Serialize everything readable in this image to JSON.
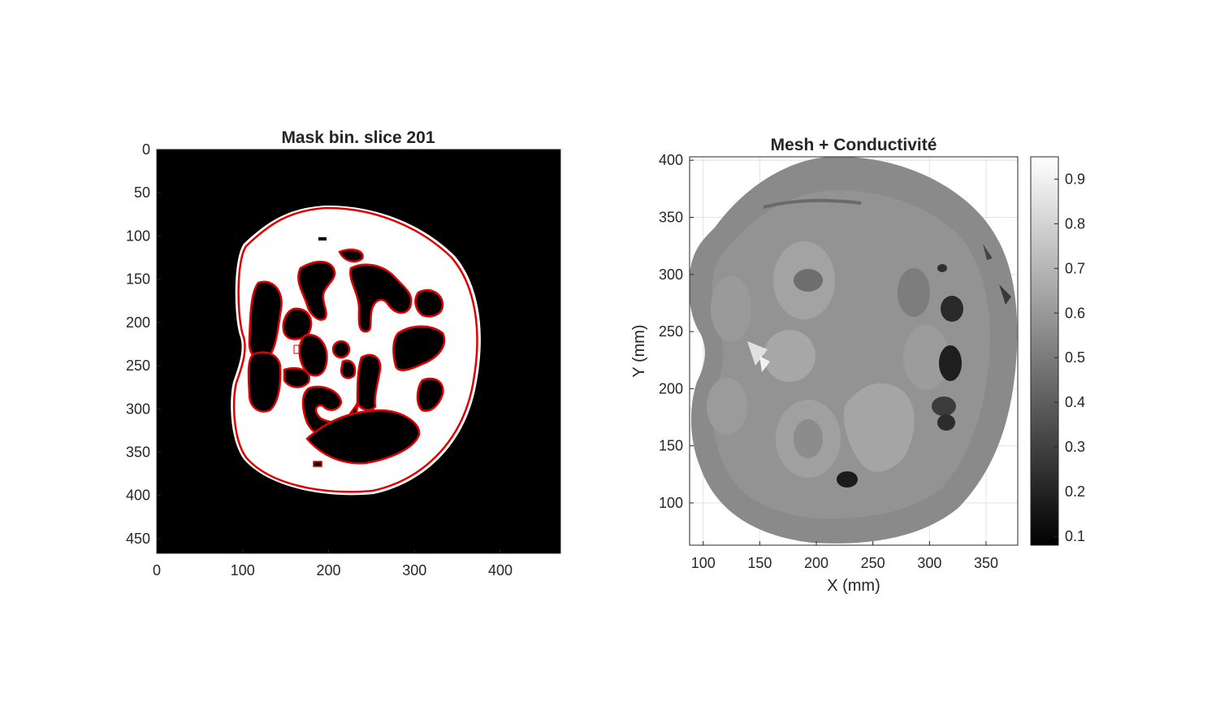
{
  "chart_data": [
    {
      "type": "heatmap",
      "title": "Mask bin. slice 201",
      "xlabel": "",
      "ylabel": "",
      "xlim": [
        0,
        470
      ],
      "ylim": [
        0,
        467
      ],
      "y_reversed": true,
      "x_ticks": [
        "0",
        "100",
        "200",
        "300",
        "400"
      ],
      "x_tick_values": [
        0,
        100,
        200,
        300,
        400
      ],
      "y_ticks": [
        "0",
        "50",
        "100",
        "150",
        "200",
        "250",
        "300",
        "350",
        "400",
        "450"
      ],
      "y_tick_values": [
        0,
        50,
        100,
        150,
        200,
        250,
        300,
        350,
        400,
        450
      ],
      "grid": false,
      "colors": {
        "background": "#000000",
        "foreground": "#ffffff",
        "contour": "#e00000"
      },
      "description_values": {
        "body_mask": 1,
        "background": 0
      }
    },
    {
      "type": "heatmap",
      "title": "Mesh + Conductivité",
      "xlabel": "X (mm)",
      "ylabel": "Y (mm)",
      "xlim": [
        88,
        378
      ],
      "ylim": [
        63,
        403
      ],
      "x_ticks": [
        "100",
        "150",
        "200",
        "250",
        "300",
        "350"
      ],
      "x_tick_values": [
        100,
        150,
        200,
        250,
        300,
        350
      ],
      "y_ticks": [
        "100",
        "150",
        "200",
        "250",
        "300",
        "350",
        "400"
      ],
      "y_tick_values": [
        100,
        150,
        200,
        250,
        300,
        350,
        400
      ],
      "grid": true,
      "colorbar": {
        "range": [
          0.08,
          0.95
        ],
        "ticks": [
          "0.1",
          "0.2",
          "0.3",
          "0.4",
          "0.5",
          "0.6",
          "0.7",
          "0.8",
          "0.9"
        ],
        "tick_values": [
          0.1,
          0.2,
          0.3,
          0.4,
          0.5,
          0.6,
          0.7,
          0.8,
          0.9
        ],
        "colormap": "gray"
      }
    }
  ]
}
